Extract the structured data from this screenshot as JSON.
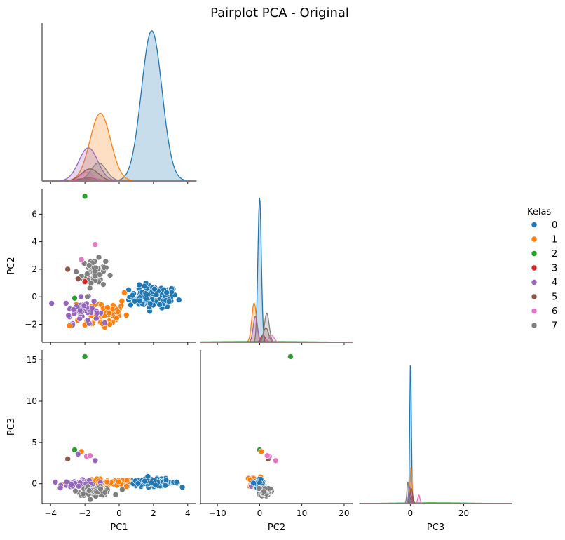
{
  "figure": {
    "title": "Pairplot PCA - Original"
  },
  "legend": {
    "title": "Kelas",
    "placement": "right",
    "entries": [
      "0",
      "1",
      "2",
      "3",
      "4",
      "5",
      "6",
      "7"
    ]
  },
  "colors": {
    "0": "#1f77b4",
    "1": "#ff7f0e",
    "2": "#2ca02c",
    "3": "#d62728",
    "4": "#9467bd",
    "5": "#8c564b",
    "6": "#e377c2",
    "7": "#7f7f7f"
  },
  "chart_data": [
    {
      "type": "area",
      "panel": "PC1-diag",
      "xlim": [
        -4.5,
        4.5
      ],
      "xticks": [
        -4,
        -2,
        0,
        2,
        4
      ],
      "series": [
        {
          "name": "0",
          "kde": {
            "mu": 1.9,
            "sigma": 0.6,
            "peak": 1.0
          }
        },
        {
          "name": "1",
          "kde": {
            "mu": -1.1,
            "sigma": 0.6,
            "peak": 0.45
          }
        },
        {
          "name": "2",
          "kde": {
            "mu": -2.1,
            "sigma": 0.5,
            "peak": 0.015
          }
        },
        {
          "name": "3",
          "kde": {
            "mu": -1.8,
            "sigma": 0.5,
            "peak": 0.02
          }
        },
        {
          "name": "4",
          "kde": {
            "mu": -1.8,
            "sigma": 0.55,
            "peak": 0.22
          }
        },
        {
          "name": "5",
          "kde": {
            "mu": -1.7,
            "sigma": 0.5,
            "peak": 0.08
          }
        },
        {
          "name": "6",
          "kde": {
            "mu": -1.9,
            "sigma": 0.35,
            "peak": 0.06
          }
        },
        {
          "name": "7",
          "kde": {
            "mu": -1.2,
            "sigma": 0.45,
            "peak": 0.12
          }
        }
      ]
    },
    {
      "type": "scatter",
      "panel": "PC1-PC2",
      "xlim": [
        -4.5,
        4.5
      ],
      "ylim": [
        -3.3,
        7.8
      ],
      "xticks": [
        -4,
        -2,
        0,
        2,
        4
      ],
      "yticks": [
        -2,
        0,
        2,
        4,
        6
      ],
      "ylabel": "PC2",
      "clusters": [
        {
          "name": "0",
          "cx": 2.0,
          "cy": 0.0,
          "sx": 0.7,
          "sy": 0.4,
          "n": 110
        },
        {
          "name": "1",
          "cx": -0.9,
          "cy": -1.2,
          "sx": 0.7,
          "sy": 0.6,
          "n": 55
        },
        {
          "name": "4",
          "cx": -2.2,
          "cy": -1.0,
          "sx": 0.5,
          "sy": 0.45,
          "n": 45
        },
        {
          "name": "7",
          "cx": -1.5,
          "cy": 1.7,
          "sx": 0.35,
          "sy": 0.5,
          "n": 60
        }
      ],
      "points": [
        {
          "name": "2",
          "x": -2.0,
          "y": 7.3
        },
        {
          "name": "2",
          "x": -2.6,
          "y": -0.1
        },
        {
          "name": "6",
          "x": -1.4,
          "y": 3.8
        },
        {
          "name": "6",
          "x": -2.2,
          "y": 2.7
        },
        {
          "name": "5",
          "x": -3.0,
          "y": 2.0
        },
        {
          "name": "5",
          "x": -2.4,
          "y": 1.3
        },
        {
          "name": "3",
          "x": -2.0,
          "y": 1.1
        },
        {
          "name": "1",
          "x": -2.9,
          "y": -2.1
        },
        {
          "name": "1",
          "x": 0.3,
          "y": 0.3
        }
      ]
    },
    {
      "type": "area",
      "panel": "PC2-diag",
      "xlim": [
        -14,
        22
      ],
      "xticks": [
        -10,
        0,
        10,
        20
      ],
      "series": [
        {
          "name": "0",
          "kde": {
            "mu": 0.0,
            "sigma": 0.4,
            "peak": 1.0
          }
        },
        {
          "name": "1",
          "kde": {
            "mu": -1.3,
            "sigma": 0.55,
            "peak": 0.27
          }
        },
        {
          "name": "2",
          "kde": {
            "mu": 0.0,
            "sigma": 12,
            "peak": 0.005
          }
        },
        {
          "name": "3",
          "kde": {
            "mu": 0.8,
            "sigma": 0.5,
            "peak": 0.05
          }
        },
        {
          "name": "4",
          "kde": {
            "mu": -1.0,
            "sigma": 0.5,
            "peak": 0.18
          }
        },
        {
          "name": "5",
          "kde": {
            "mu": 1.5,
            "sigma": 0.6,
            "peak": 0.1
          }
        },
        {
          "name": "6",
          "kde": {
            "mu": 2.8,
            "sigma": 0.6,
            "peak": 0.05
          }
        },
        {
          "name": "7",
          "kde": {
            "mu": 1.7,
            "sigma": 0.55,
            "peak": 0.2
          }
        }
      ]
    },
    {
      "type": "scatter",
      "panel": "PC1-PC3",
      "xlim": [
        -4.5,
        4.5
      ],
      "ylim": [
        -2.4,
        16.2
      ],
      "xticks": [
        -4,
        -2,
        0,
        2,
        4
      ],
      "yticks": [
        0,
        5,
        10,
        15
      ],
      "xlabel": "PC1",
      "ylabel": "PC3",
      "clusters": [
        {
          "name": "0",
          "cx": 2.0,
          "cy": 0.15,
          "sx": 0.75,
          "sy": 0.22,
          "n": 110
        },
        {
          "name": "1",
          "cx": -0.9,
          "cy": 0.05,
          "sx": 0.9,
          "sy": 0.25,
          "n": 55
        },
        {
          "name": "4",
          "cx": -2.3,
          "cy": 0.0,
          "sx": 0.5,
          "sy": 0.2,
          "n": 45
        },
        {
          "name": "7",
          "cx": -1.4,
          "cy": -0.9,
          "sx": 0.5,
          "sy": 0.25,
          "n": 60
        }
      ],
      "points": [
        {
          "name": "2",
          "x": -2.0,
          "y": 15.4
        },
        {
          "name": "2",
          "x": -2.6,
          "y": 4.1
        },
        {
          "name": "1",
          "x": -2.2,
          "y": 3.9
        },
        {
          "name": "5",
          "x": -3.0,
          "y": 3.0
        },
        {
          "name": "6",
          "x": -1.9,
          "y": 3.3
        },
        {
          "name": "6",
          "x": -1.7,
          "y": 3.4
        },
        {
          "name": "4",
          "x": -2.4,
          "y": 3.6
        },
        {
          "name": "4",
          "x": -1.4,
          "y": 2.8
        }
      ]
    },
    {
      "type": "scatter",
      "panel": "PC2-PC3",
      "xlim": [
        -14,
        22
      ],
      "ylim": [
        -2.4,
        16.2
      ],
      "xticks": [
        -10,
        0,
        10,
        20
      ],
      "xlabel": "PC2",
      "clusters": [
        {
          "name": "1",
          "cx": -1.4,
          "cy": 0.2,
          "sx": 0.8,
          "sy": 0.3,
          "n": 40
        },
        {
          "name": "4",
          "cx": -0.5,
          "cy": -0.2,
          "sx": 0.7,
          "sy": 0.3,
          "n": 40
        },
        {
          "name": "0",
          "cx": 0.0,
          "cy": 0.0,
          "sx": 0.5,
          "sy": 0.3,
          "n": 70
        },
        {
          "name": "7",
          "cx": 1.4,
          "cy": -0.9,
          "sx": 0.6,
          "sy": 0.3,
          "n": 55
        }
      ],
      "points": [
        {
          "name": "2",
          "x": 7.3,
          "y": 15.4
        },
        {
          "name": "2",
          "x": 0.0,
          "y": 4.1
        },
        {
          "name": "1",
          "x": 0.4,
          "y": 3.9
        },
        {
          "name": "5",
          "x": 2.0,
          "y": 3.0
        },
        {
          "name": "6",
          "x": 2.3,
          "y": 3.3
        },
        {
          "name": "6",
          "x": 3.8,
          "y": 2.8
        },
        {
          "name": "6",
          "x": 1.8,
          "y": 3.4
        }
      ]
    },
    {
      "type": "area",
      "panel": "PC3-diag",
      "xlim": [
        -19,
        38
      ],
      "xticks": [
        0,
        20
      ],
      "xlabel": "PC3",
      "series": [
        {
          "name": "0",
          "kde": {
            "mu": 0.1,
            "sigma": 0.3,
            "peak": 1.0
          }
        },
        {
          "name": "1",
          "kde": {
            "mu": 0.3,
            "sigma": 0.35,
            "peak": 0.25
          }
        },
        {
          "name": "2",
          "kde": {
            "mu": 8.0,
            "sigma": 14,
            "peak": 0.005
          }
        },
        {
          "name": "3",
          "kde": {
            "mu": 0.5,
            "sigma": 0.5,
            "peak": 0.05
          }
        },
        {
          "name": "4",
          "kde": {
            "mu": -0.2,
            "sigma": 0.4,
            "peak": 0.12
          }
        },
        {
          "name": "5",
          "kde": {
            "mu": 0.4,
            "sigma": 0.5,
            "peak": 0.1
          }
        },
        {
          "name": "6",
          "kde": {
            "mu": 3.2,
            "sigma": 0.4,
            "peak": 0.06
          }
        },
        {
          "name": "7",
          "kde": {
            "mu": -0.9,
            "sigma": 0.35,
            "peak": 0.15
          }
        }
      ]
    }
  ]
}
